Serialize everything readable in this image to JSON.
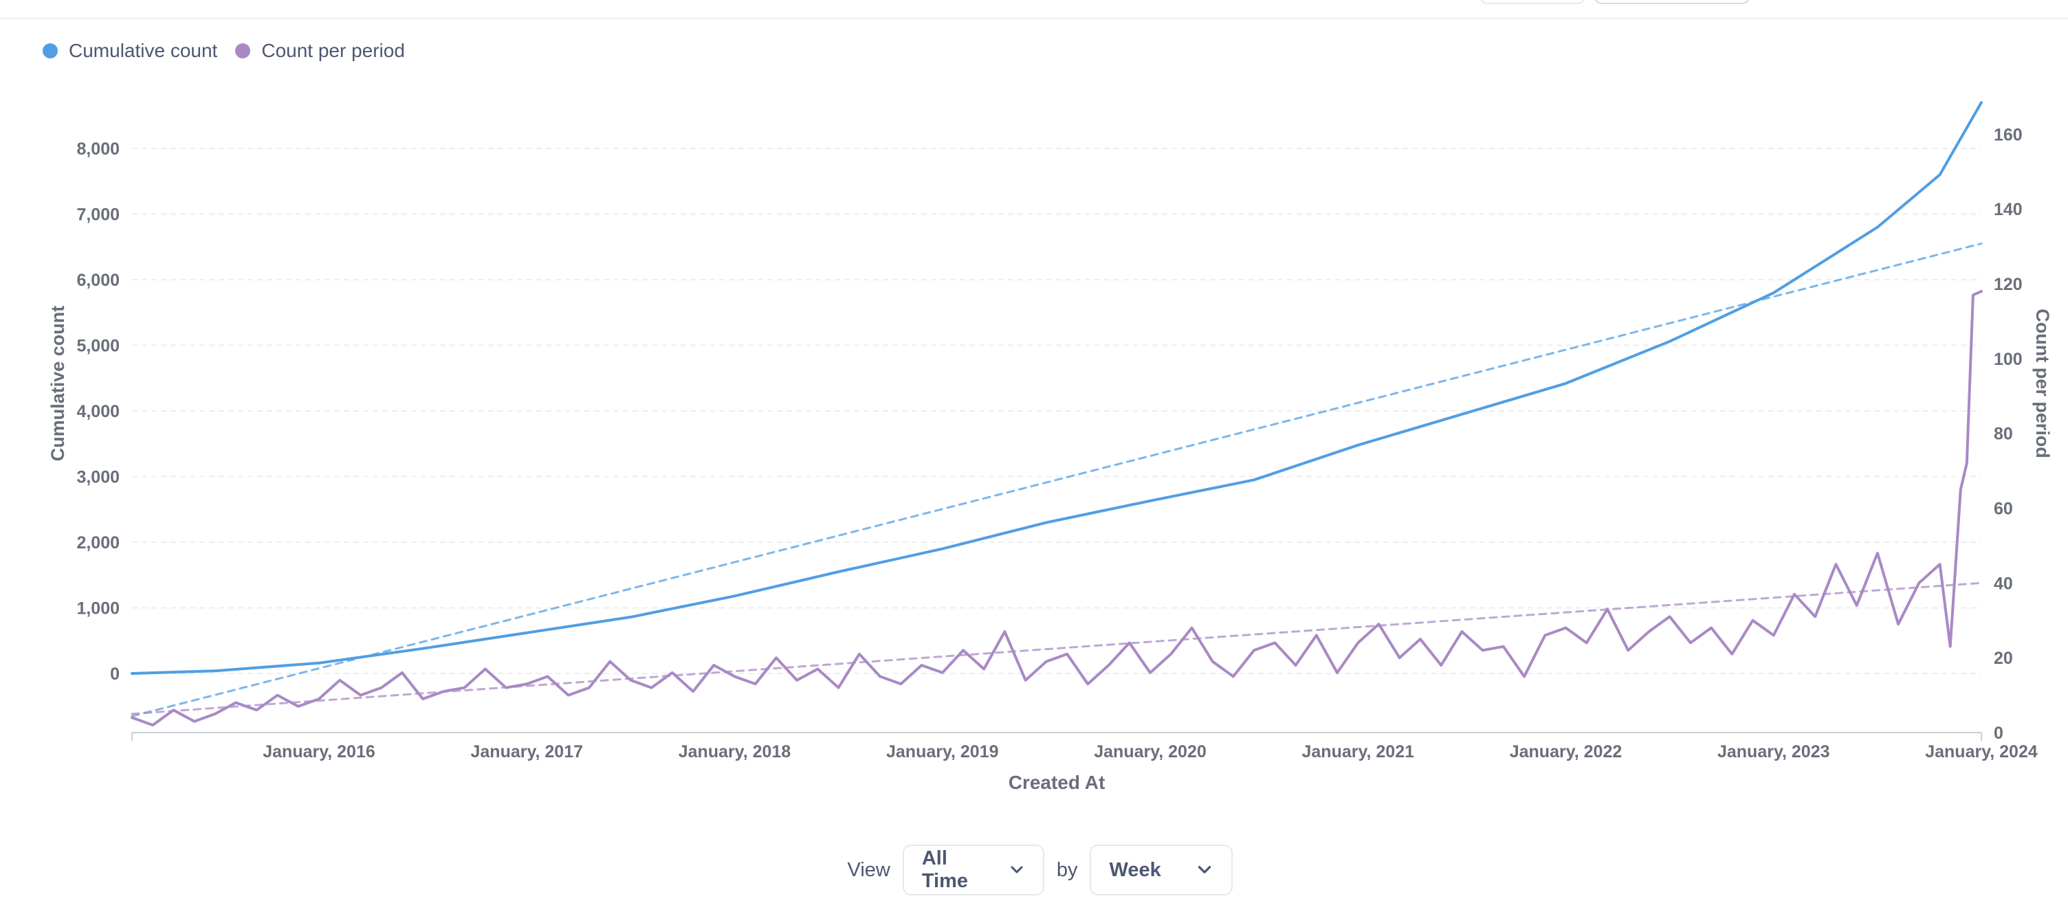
{
  "legend": [
    {
      "label": "Cumulative count",
      "color": "#509ee3"
    },
    {
      "label": "Count per period",
      "color": "#a989c5"
    }
  ],
  "controls": {
    "view_label": "View",
    "view_value": "All Time",
    "by_label": "by",
    "unit_value": "Week"
  },
  "icons": {
    "chevron": "chevron-down-icon"
  },
  "chart_data": {
    "type": "line",
    "title": "",
    "xlabel": "Created At",
    "ylabel_left": "Cumulative count",
    "ylabel_right": "Count per period",
    "x_ticks": [
      "January, 2016",
      "January, 2017",
      "January, 2018",
      "January, 2019",
      "January, 2020",
      "January, 2021",
      "January, 2022",
      "January, 2023",
      "January, 2024"
    ],
    "x_range": [
      2015.1,
      2024.0
    ],
    "y_left_range": [
      -900,
      8900
    ],
    "y_left_ticks": [
      0,
      1000,
      2000,
      3000,
      4000,
      5000,
      6000,
      7000,
      8000
    ],
    "y_left_tick_labels": [
      "0",
      "1,000",
      "2,000",
      "3,000",
      "4,000",
      "5,000",
      "6,000",
      "7,000",
      "8,000"
    ],
    "y_right_range": [
      0,
      172
    ],
    "y_right_ticks": [
      0,
      20,
      40,
      60,
      80,
      100,
      120,
      140,
      160
    ],
    "y_right_tick_labels": [
      "0",
      "20",
      "40",
      "60",
      "80",
      "100",
      "120",
      "140",
      "160"
    ],
    "grid": true,
    "legend_position": "top-left",
    "series": [
      {
        "name": "Cumulative count",
        "axis": "left",
        "color": "#509ee3",
        "x": [
          2015.1,
          2015.5,
          2016.0,
          2016.5,
          2017.0,
          2017.5,
          2018.0,
          2018.5,
          2019.0,
          2019.5,
          2020.0,
          2020.5,
          2021.0,
          2021.5,
          2022.0,
          2022.5,
          2023.0,
          2023.5,
          2023.8,
          2024.0
        ],
        "values": [
          0,
          40,
          160,
          380,
          620,
          860,
          1180,
          1550,
          1900,
          2300,
          2630,
          2950,
          3480,
          3950,
          4420,
          5060,
          5800,
          6800,
          7600,
          8700
        ]
      },
      {
        "name": "Count per period",
        "axis": "right",
        "color": "#a989c5",
        "x": [
          2015.1,
          2015.2,
          2015.3,
          2015.4,
          2015.5,
          2015.6,
          2015.7,
          2015.8,
          2015.9,
          2016.0,
          2016.1,
          2016.2,
          2016.3,
          2016.4,
          2016.5,
          2016.6,
          2016.7,
          2016.8,
          2016.9,
          2017.0,
          2017.1,
          2017.2,
          2017.3,
          2017.4,
          2017.5,
          2017.6,
          2017.7,
          2017.8,
          2017.9,
          2018.0,
          2018.1,
          2018.2,
          2018.3,
          2018.4,
          2018.5,
          2018.6,
          2018.7,
          2018.8,
          2018.9,
          2019.0,
          2019.1,
          2019.2,
          2019.3,
          2019.4,
          2019.5,
          2019.6,
          2019.7,
          2019.8,
          2019.9,
          2020.0,
          2020.1,
          2020.2,
          2020.3,
          2020.4,
          2020.5,
          2020.6,
          2020.7,
          2020.8,
          2020.9,
          2021.0,
          2021.1,
          2021.2,
          2021.3,
          2021.4,
          2021.5,
          2021.6,
          2021.7,
          2021.8,
          2021.9,
          2022.0,
          2022.1,
          2022.2,
          2022.3,
          2022.4,
          2022.5,
          2022.6,
          2022.7,
          2022.8,
          2022.9,
          2023.0,
          2023.1,
          2023.2,
          2023.3,
          2023.4,
          2023.5,
          2023.6,
          2023.7,
          2023.8,
          2023.85,
          2023.9,
          2023.93,
          2023.96,
          2024.0
        ],
        "values": [
          4,
          2,
          6,
          3,
          5,
          8,
          6,
          10,
          7,
          9,
          14,
          10,
          12,
          16,
          9,
          11,
          12,
          17,
          12,
          13,
          15,
          10,
          12,
          19,
          14,
          12,
          16,
          11,
          18,
          15,
          13,
          20,
          14,
          17,
          12,
          21,
          15,
          13,
          18,
          16,
          22,
          17,
          27,
          14,
          19,
          21,
          13,
          18,
          24,
          16,
          21,
          28,
          19,
          15,
          22,
          24,
          18,
          26,
          16,
          24,
          29,
          20,
          25,
          18,
          27,
          22,
          23,
          15,
          26,
          28,
          24,
          33,
          22,
          27,
          31,
          24,
          28,
          21,
          30,
          26,
          37,
          31,
          45,
          34,
          48,
          29,
          40,
          45,
          23,
          65,
          72,
          117,
          118
        ]
      },
      {
        "name": "",
        "axis": "left",
        "color": "#509ee3",
        "dashed": true,
        "x": [
          2015.1,
          2024.0
        ],
        "values": [
          -650,
          6550
        ]
      },
      {
        "name": "",
        "axis": "right",
        "color": "#a989c5",
        "dashed": true,
        "x": [
          2015.1,
          2024.0
        ],
        "values": [
          5,
          40
        ]
      }
    ]
  }
}
